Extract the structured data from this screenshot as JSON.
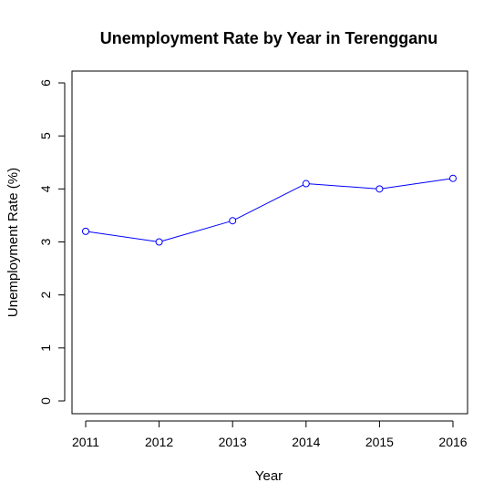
{
  "chart_data": {
    "type": "line",
    "title": "Unemployment Rate by Year in Terengganu",
    "xlabel": "Year",
    "ylabel": "Unemployment Rate (%)",
    "x": [
      "2011",
      "2012",
      "2013",
      "2014",
      "2015",
      "2016"
    ],
    "series": [
      {
        "values": [
          3.2,
          3.0,
          3.4,
          4.1,
          4.0,
          4.2
        ]
      }
    ],
    "ylim": [
      0,
      6
    ],
    "yticks": [
      "0",
      "1",
      "2",
      "3",
      "4",
      "5",
      "6"
    ],
    "grid": false,
    "legend": "none",
    "line_color": "#0000ff",
    "marker": "open-circle"
  }
}
